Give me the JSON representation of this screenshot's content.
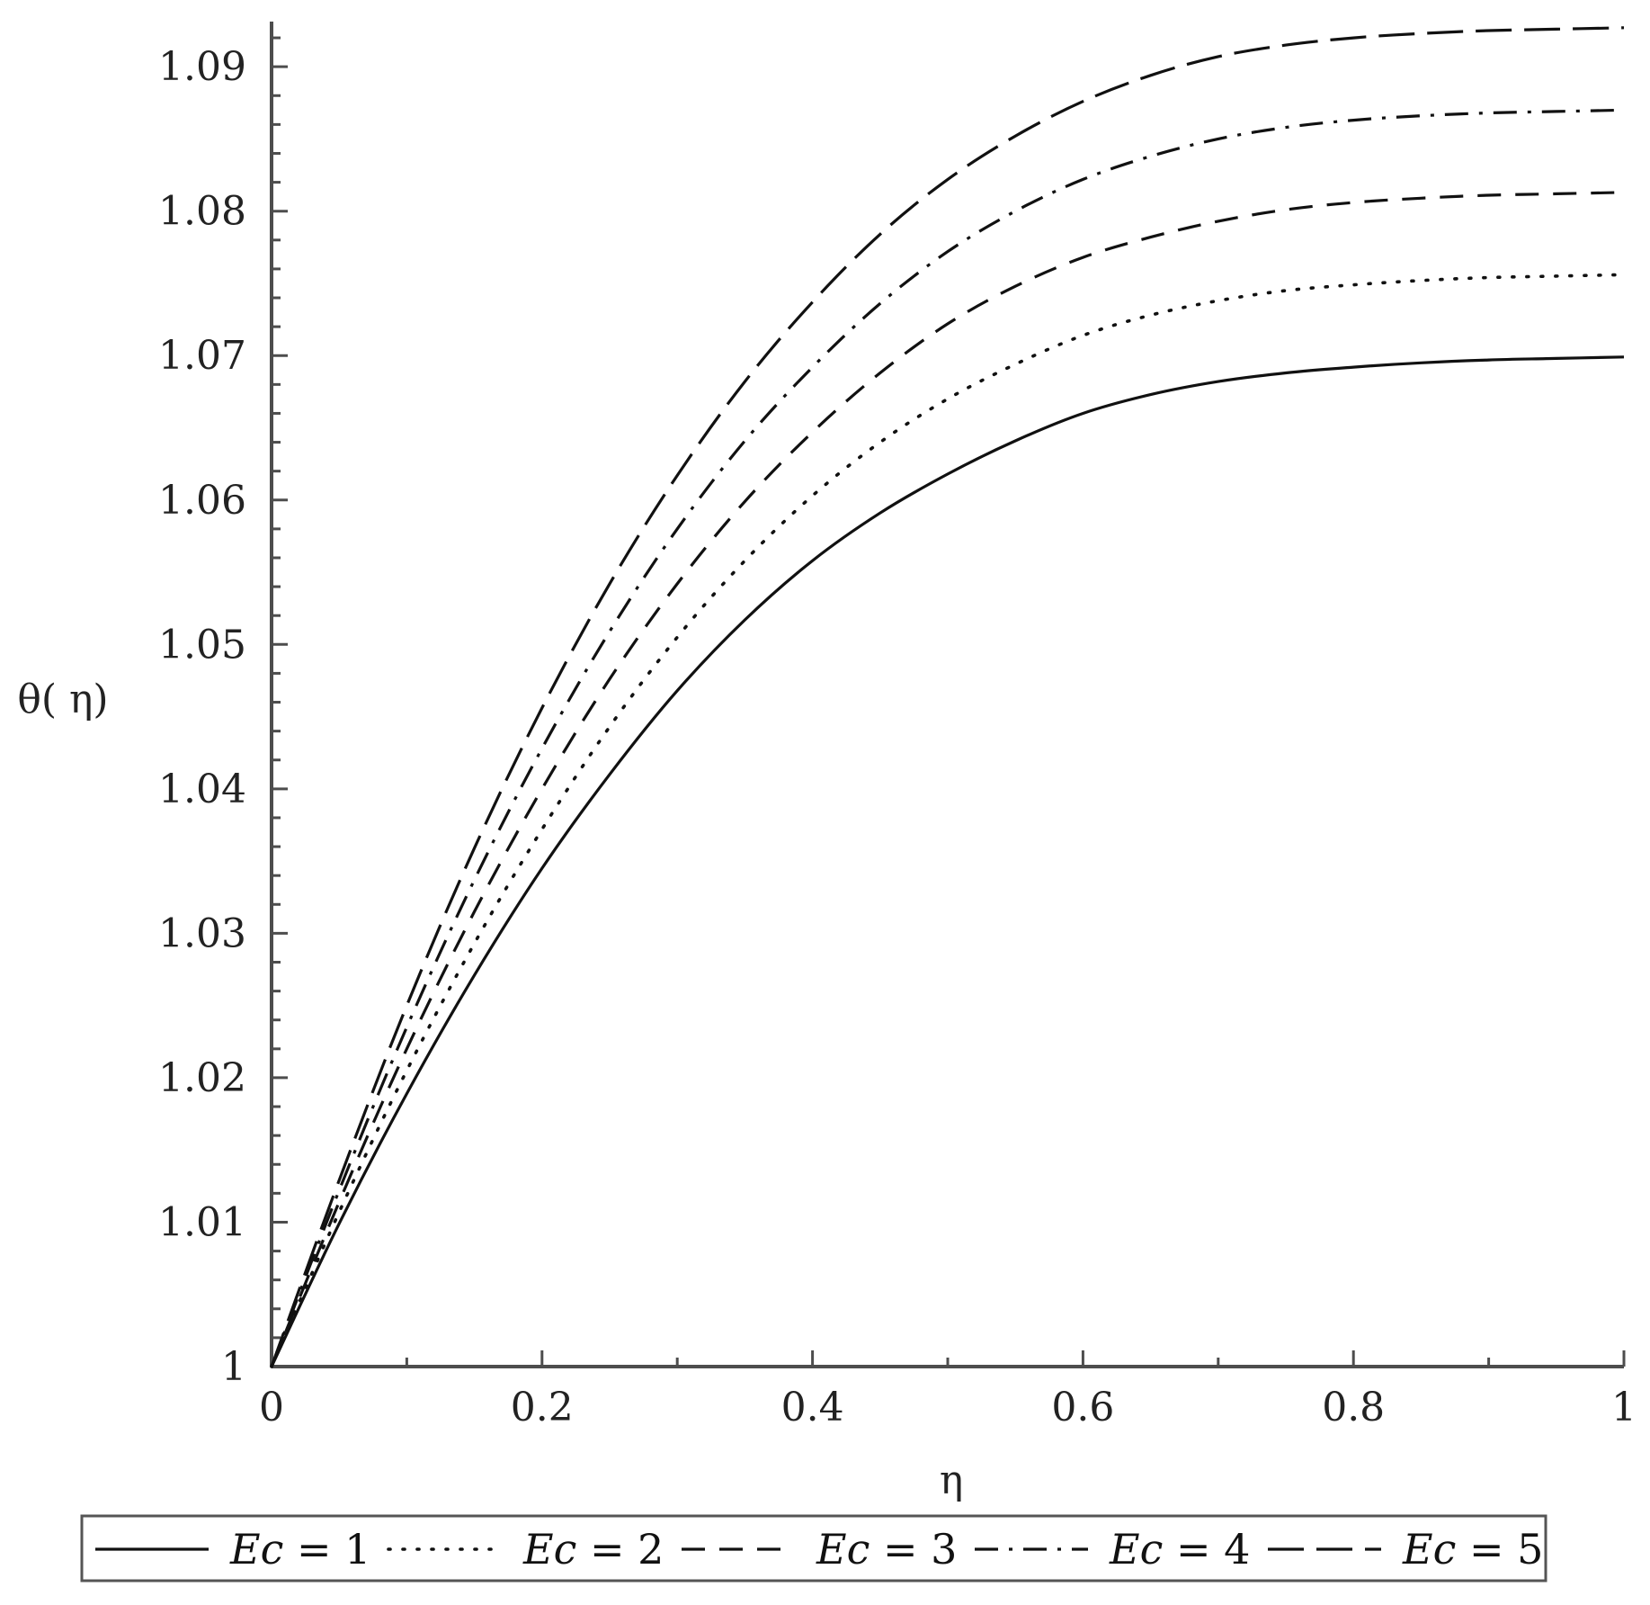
{
  "chart_data": {
    "type": "line",
    "xlabel": "η",
    "ylabel": "θ( η)",
    "xlim": [
      0,
      1
    ],
    "ylim": [
      1,
      1.093
    ],
    "xticks": [
      "0",
      "0.2",
      "0.4",
      "0.6",
      "0.8",
      "1"
    ],
    "yticks": [
      "1",
      "1.01",
      "1.02",
      "1.03",
      "1.04",
      "1.05",
      "1.06",
      "1.07",
      "1.08",
      "1.09"
    ],
    "legend_position": "bottom",
    "x": [
      0,
      0.05,
      0.1,
      0.15,
      0.2,
      0.25,
      0.3,
      0.35,
      0.4,
      0.45,
      0.5,
      0.55,
      0.6,
      0.65,
      0.7,
      0.75,
      0.8,
      0.85,
      0.9,
      0.95,
      1
    ],
    "series": [
      {
        "name": "Ec = 1",
        "legend_var": "Ec",
        "legend_rest": " = 1",
        "style": "solid",
        "values": [
          1.0,
          1.0099,
          1.0189,
          1.0271,
          1.0345,
          1.041,
          1.0468,
          1.0517,
          1.0558,
          1.0591,
          1.0618,
          1.0641,
          1.066,
          1.0673,
          1.0682,
          1.0688,
          1.0692,
          1.0695,
          1.0697,
          1.0698,
          1.0699
        ]
      },
      {
        "name": "Ec = 2",
        "legend_var": "Ec",
        "legend_rest": " = 2",
        "style": "dotted",
        "values": [
          1.0,
          1.0107,
          1.0205,
          1.0293,
          1.0372,
          1.0443,
          1.0505,
          1.0558,
          1.0603,
          1.064,
          1.067,
          1.0694,
          1.0714,
          1.0728,
          1.0738,
          1.0745,
          1.0749,
          1.0752,
          1.0754,
          1.0755,
          1.0756
        ]
      },
      {
        "name": "Ec = 3",
        "legend_var": "Ec",
        "legend_rest": " = 3",
        "style": "dashed",
        "values": [
          1.0,
          1.0114,
          1.022,
          1.0315,
          1.04,
          1.0476,
          1.0542,
          1.0599,
          1.0647,
          1.0688,
          1.0722,
          1.0748,
          1.0768,
          1.0782,
          1.0793,
          1.0801,
          1.0806,
          1.0809,
          1.0811,
          1.0812,
          1.0813
        ]
      },
      {
        "name": "Ec = 4",
        "legend_var": "Ec",
        "legend_rest": " = 4",
        "style": "dashdot",
        "values": [
          1.0,
          1.0122,
          1.0235,
          1.0337,
          1.0428,
          1.0509,
          1.058,
          1.0641,
          1.0692,
          1.0736,
          1.0772,
          1.08,
          1.0822,
          1.0838,
          1.085,
          1.0858,
          1.0863,
          1.0866,
          1.0868,
          1.0869,
          1.087
        ]
      },
      {
        "name": "Ec = 5",
        "legend_var": "Ec",
        "legend_rest": " = 5",
        "style": "longdash",
        "values": [
          1.0,
          1.0129,
          1.025,
          1.0359,
          1.0456,
          1.0542,
          1.0617,
          1.0682,
          1.0737,
          1.0784,
          1.0822,
          1.0852,
          1.0876,
          1.0894,
          1.0907,
          1.0915,
          1.092,
          1.0923,
          1.0925,
          1.0926,
          1.0927
        ]
      }
    ]
  },
  "colors": {
    "axis": "#4d4d4d",
    "line": "#111111",
    "legend_border": "#555555",
    "background": "#ffffff"
  }
}
